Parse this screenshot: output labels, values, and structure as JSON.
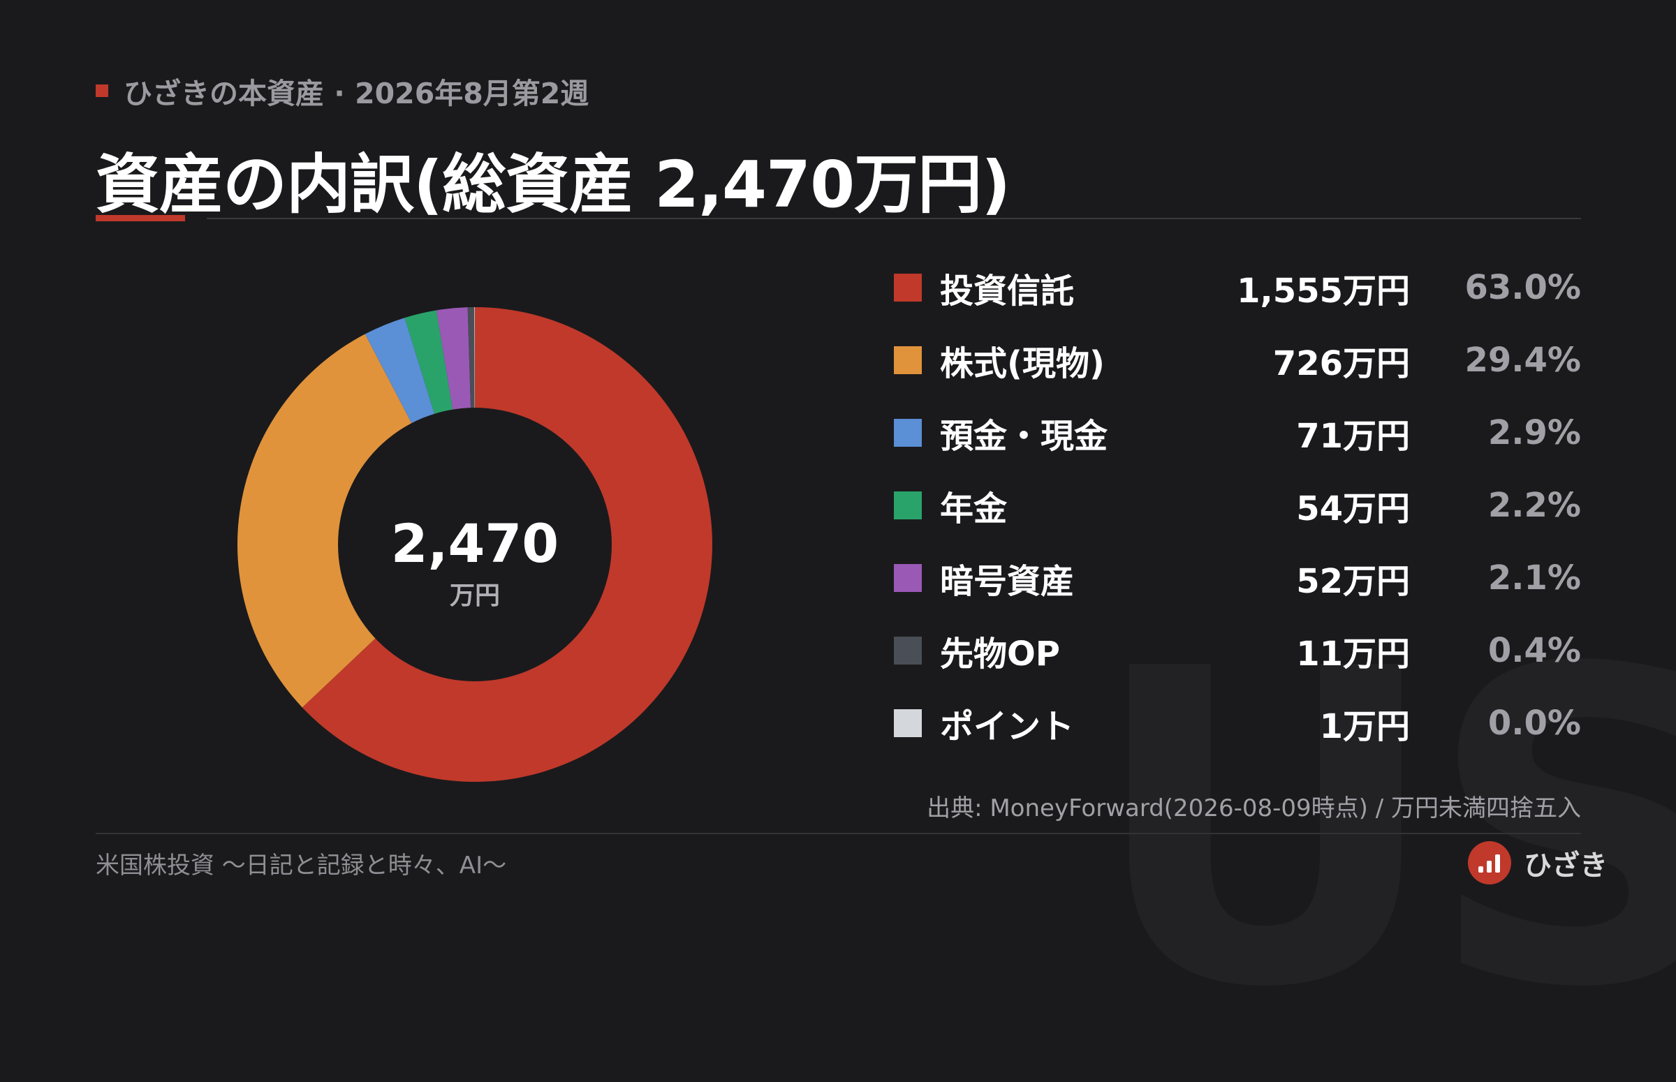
{
  "header": {
    "eyebrow": "ひざきの本資産 · 2026年8月第2週",
    "title": "資産の内訳(総資産 2,470万円)"
  },
  "colors": {
    "accent": "#c0392b",
    "donut_hole": "#1a1a1c"
  },
  "chart_data": {
    "type": "pie",
    "donut": true,
    "center_value": "2,470",
    "center_unit": "万円",
    "unit": "万円",
    "total": 2470,
    "legend_position": "right",
    "categories": [
      "投資信託",
      "株式(現物)",
      "預金・現金",
      "年金",
      "暗号資産",
      "先物OP",
      "ポイント"
    ],
    "values": [
      1555,
      726,
      71,
      54,
      52,
      11,
      1
    ],
    "percentages": [
      63.0,
      29.4,
      2.9,
      2.2,
      2.1,
      0.4,
      0.0
    ],
    "amount_labels": [
      "1,555万円",
      "726万円",
      "71万円",
      "54万円",
      "52万円",
      "11万円",
      "1万円"
    ],
    "percent_labels": [
      "63.0%",
      "29.4%",
      "2.9%",
      "2.2%",
      "2.1%",
      "0.4%",
      "0.0%"
    ],
    "colors": [
      "#c0392b",
      "#e0933b",
      "#5b8fd6",
      "#2aa36b",
      "#9b59b6",
      "#4a4e56",
      "#d4d7dc"
    ]
  },
  "source": "出典: MoneyForward(2026-08-09時点) / 万円未満四捨五入",
  "footer": {
    "blog_name": "米国株投資 〜日記と記録と時々、AI〜",
    "brand_name": "ひざき",
    "brand_icon": "bar-chart-icon"
  },
  "watermark": "US"
}
